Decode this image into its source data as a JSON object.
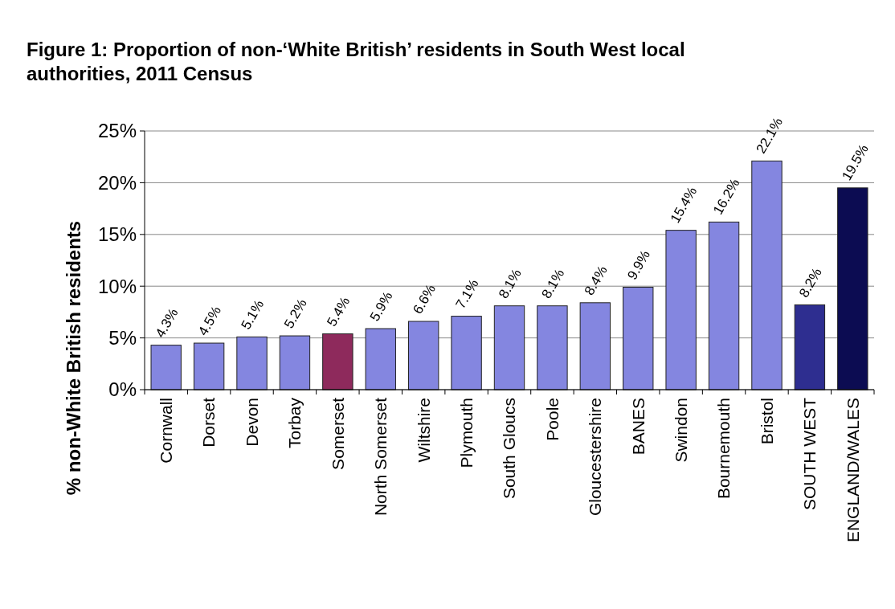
{
  "chart_data": {
    "type": "bar",
    "title": "Figure 1: Proportion of non-‘White British’ residents in South West local authorities, 2011 Census",
    "ylabel": "% non-White British residents",
    "categories": [
      "Cornwall",
      "Dorset",
      "Devon",
      "Torbay",
      "Somerset",
      "North Somerset",
      "Wiltshire",
      "Plymouth",
      "South Gloucs",
      "Poole",
      "Gloucestershire",
      "BANES",
      "Swindon",
      "Bournemouth",
      "Bristol",
      "SOUTH WEST",
      "ENGLAND/WALES"
    ],
    "values": [
      4.3,
      4.5,
      5.1,
      5.2,
      5.4,
      5.9,
      6.6,
      7.1,
      8.1,
      8.1,
      8.4,
      9.9,
      15.4,
      16.2,
      22.1,
      8.2,
      19.5
    ],
    "value_labels": [
      "4.3%",
      "4.5%",
      "5.1%",
      "5.2%",
      "5.4%",
      "5.9%",
      "6.6%",
      "7.1%",
      "8.1%",
      "8.1%",
      "8.4%",
      "9.9%",
      "15.4%",
      "16.2%",
      "22.1%",
      "8.2%",
      "19.5%"
    ],
    "colors": [
      "#8486e0",
      "#8486e0",
      "#8486e0",
      "#8486e0",
      "#8e2a5c",
      "#8486e0",
      "#8486e0",
      "#8486e0",
      "#8486e0",
      "#8486e0",
      "#8486e0",
      "#8486e0",
      "#8486e0",
      "#8486e0",
      "#8486e0",
      "#2e2e90",
      "#0c0c52"
    ],
    "ylim": [
      0,
      25
    ],
    "yticks": [
      {
        "value": 0,
        "label": "0%"
      },
      {
        "value": 5,
        "label": "5%"
      },
      {
        "value": 10,
        "label": "10%"
      },
      {
        "value": 15,
        "label": "15%"
      },
      {
        "value": 20,
        "label": "20%"
      },
      {
        "value": 25,
        "label": "25%"
      }
    ],
    "grid": "y"
  }
}
